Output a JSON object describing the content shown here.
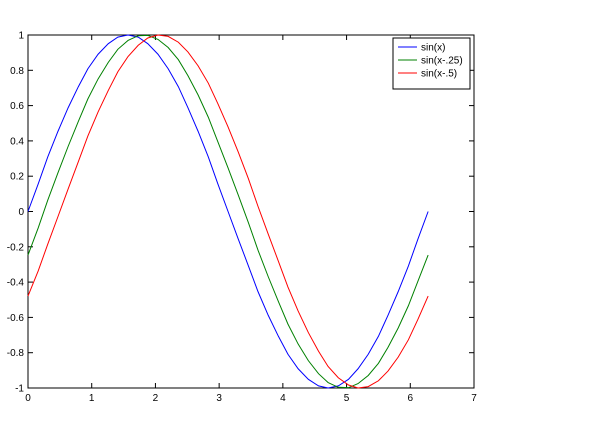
{
  "chart_data": {
    "type": "line",
    "x": [
      0,
      0.16,
      0.31,
      0.47,
      0.63,
      0.79,
      0.94,
      1.1,
      1.26,
      1.41,
      1.57,
      1.73,
      1.88,
      2.04,
      2.2,
      2.36,
      2.51,
      2.67,
      2.83,
      2.98,
      3.14,
      3.3,
      3.46,
      3.61,
      3.77,
      3.93,
      4.08,
      4.24,
      4.4,
      4.56,
      4.71,
      4.87,
      5.03,
      5.18,
      5.34,
      5.5,
      5.65,
      5.81,
      5.97,
      6.12,
      6.28
    ],
    "series": [
      {
        "name": "sin(x)",
        "color": "#0000ff",
        "values": [
          0,
          0.156,
          0.309,
          0.454,
          0.588,
          0.707,
          0.809,
          0.891,
          0.951,
          0.988,
          1,
          0.988,
          0.951,
          0.891,
          0.809,
          0.707,
          0.588,
          0.454,
          0.309,
          0.156,
          0,
          -0.156,
          -0.309,
          -0.454,
          -0.588,
          -0.707,
          -0.809,
          -0.891,
          -0.951,
          -0.988,
          -1,
          -0.988,
          -0.951,
          -0.891,
          -0.809,
          -0.707,
          -0.588,
          -0.454,
          -0.309,
          -0.156,
          0
        ]
      },
      {
        "name": "sin(x-.25)",
        "color": "#008000",
        "values": [
          -0.247,
          -0.093,
          0.064,
          0.219,
          0.369,
          0.51,
          0.638,
          0.751,
          0.845,
          0.919,
          0.969,
          0.996,
          0.998,
          0.975,
          0.929,
          0.86,
          0.77,
          0.66,
          0.534,
          0.395,
          0.247,
          0.093,
          -0.064,
          -0.219,
          -0.369,
          -0.51,
          -0.638,
          -0.751,
          -0.845,
          -0.919,
          -0.969,
          -0.996,
          -0.998,
          -0.975,
          -0.929,
          -0.86,
          -0.77,
          -0.66,
          -0.534,
          -0.395,
          -0.247
        ]
      },
      {
        "name": "sin(x-.5)",
        "color": "#ff0000",
        "values": [
          -0.479,
          -0.337,
          -0.185,
          -0.029,
          0.128,
          0.282,
          0.428,
          0.564,
          0.686,
          0.792,
          0.878,
          0.942,
          0.983,
          1,
          0.992,
          0.959,
          0.904,
          0.825,
          0.727,
          0.611,
          0.479,
          0.337,
          0.185,
          0.029,
          -0.128,
          -0.282,
          -0.428,
          -0.564,
          -0.686,
          -0.792,
          -0.878,
          -0.942,
          -0.983,
          -1,
          -0.992,
          -0.959,
          -0.904,
          -0.825,
          -0.727,
          -0.611,
          -0.479
        ]
      }
    ],
    "xlim": [
      0,
      7
    ],
    "xticks": [
      0,
      1,
      2,
      3,
      4,
      5,
      6,
      7
    ],
    "ylim": [
      -1,
      1
    ],
    "yticks": [
      -1,
      -0.8,
      -0.6,
      -0.4,
      -0.2,
      0,
      0.2,
      0.4,
      0.6,
      0.8,
      1
    ],
    "grid": false,
    "legend": "upper-right"
  }
}
